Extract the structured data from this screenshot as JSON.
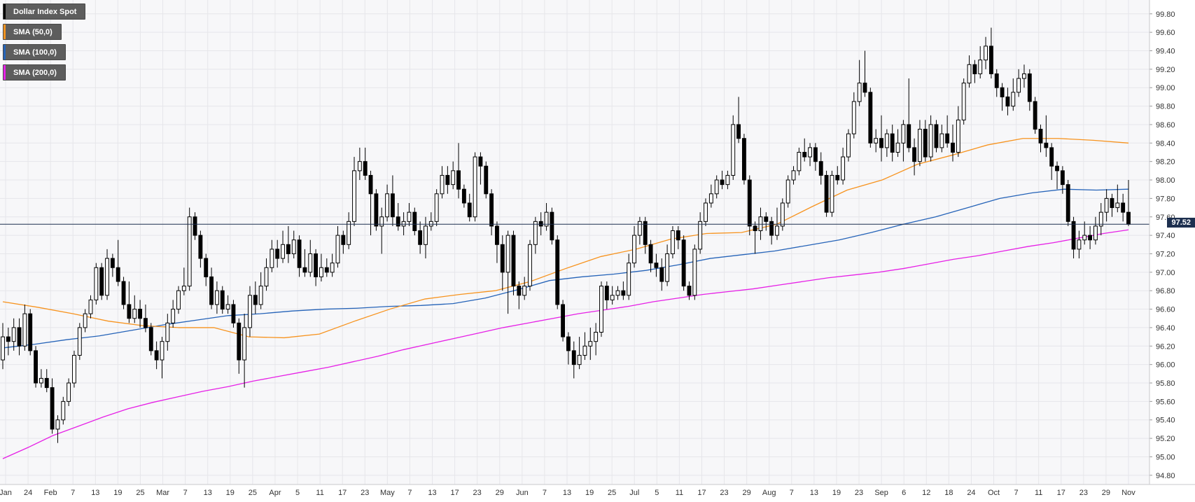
{
  "chart_data": {
    "type": "candlestick",
    "ylim": [
      94.7,
      99.95
    ],
    "y_ticks": [
      "94.80",
      "95.00",
      "95.20",
      "95.40",
      "95.60",
      "95.80",
      "96.00",
      "96.20",
      "96.40",
      "96.60",
      "96.80",
      "97.00",
      "97.20",
      "97.40",
      "97.60",
      "97.80",
      "98.00",
      "98.20",
      "98.40",
      "98.60",
      "98.80",
      "99.00",
      "99.20",
      "99.40",
      "99.60",
      "99.80"
    ],
    "x_ticks": [
      "Jan",
      "24",
      "Feb",
      "7",
      "13",
      "19",
      "25",
      "Mar",
      "7",
      "13",
      "19",
      "25",
      "Apr",
      "5",
      "11",
      "17",
      "23",
      "May",
      "7",
      "13",
      "17",
      "23",
      "29",
      "Jun",
      "7",
      "13",
      "19",
      "25",
      "Jul",
      "5",
      "11",
      "17",
      "23",
      "29",
      "Aug",
      "7",
      "13",
      "19",
      "23",
      "Sep",
      "6",
      "12",
      "18",
      "24",
      "Oct",
      "7",
      "11",
      "17",
      "23",
      "29",
      "Nov"
    ],
    "last_price": 97.52,
    "last_price_label": "97.52",
    "colors": {
      "up_fill": "#ffffff",
      "down_fill": "#000000",
      "candle_outline": "#000000",
      "sma50": "#f7931e",
      "sma100": "#2563b8",
      "sma200": "#e620e6",
      "grid": "#e6e6ea",
      "plot_bg": "#f7f7f9",
      "price_line": "#1d2f4f"
    },
    "legend": [
      {
        "label": "Dollar Index Spot",
        "color": "#000000"
      },
      {
        "label": "SMA (50,0)",
        "color": "#f7931e"
      },
      {
        "label": "SMA (100,0)",
        "color": "#2563b8"
      },
      {
        "label": "SMA (200,0)",
        "color": "#e620e6"
      }
    ],
    "candles": [
      [
        96.05,
        96.3,
        96.45,
        95.95
      ],
      [
        96.3,
        96.25,
        96.4,
        96.1
      ],
      [
        96.25,
        96.4,
        96.5,
        96.15
      ],
      [
        96.4,
        96.2,
        96.5,
        96.1
      ],
      [
        96.2,
        96.55,
        96.65,
        96.15
      ],
      [
        96.55,
        96.15,
        96.6,
        96.1
      ],
      [
        96.15,
        95.8,
        96.2,
        95.75
      ],
      [
        95.8,
        95.85,
        95.95,
        95.75
      ],
      [
        95.85,
        95.75,
        95.95,
        95.7
      ],
      [
        95.75,
        95.3,
        95.85,
        95.25
      ],
      [
        95.3,
        95.4,
        95.45,
        95.15
      ],
      [
        95.4,
        95.6,
        95.65,
        95.35
      ],
      [
        95.6,
        95.8,
        95.85,
        95.55
      ],
      [
        95.8,
        96.1,
        96.15,
        95.75
      ],
      [
        96.1,
        96.4,
        96.45,
        96.05
      ],
      [
        96.4,
        96.55,
        96.6,
        96.35
      ],
      [
        96.55,
        96.7,
        96.75,
        96.5
      ],
      [
        96.7,
        97.05,
        97.1,
        96.65
      ],
      [
        97.05,
        96.75,
        97.1,
        96.7
      ],
      [
        96.75,
        97.15,
        97.25,
        96.7
      ],
      [
        97.15,
        97.05,
        97.2,
        96.95
      ],
      [
        97.05,
        96.9,
        97.35,
        96.85
      ],
      [
        96.9,
        96.65,
        96.95,
        96.6
      ],
      [
        96.65,
        96.5,
        96.9,
        96.45
      ],
      [
        96.5,
        96.6,
        96.75,
        96.45
      ],
      [
        96.6,
        96.5,
        96.7,
        96.4
      ],
      [
        96.5,
        96.4,
        96.65,
        96.35
      ],
      [
        96.4,
        96.15,
        96.45,
        96.1
      ],
      [
        96.15,
        96.05,
        96.25,
        95.95
      ],
      [
        96.05,
        96.25,
        96.3,
        95.85
      ],
      [
        96.25,
        96.45,
        96.55,
        96.15
      ],
      [
        96.45,
        96.6,
        96.7,
        96.4
      ],
      [
        96.6,
        96.8,
        96.85,
        96.55
      ],
      [
        96.8,
        96.85,
        97.05,
        96.75
      ],
      [
        96.85,
        97.6,
        97.7,
        96.8
      ],
      [
        97.6,
        97.4,
        97.65,
        97.35
      ],
      [
        97.4,
        97.15,
        97.45,
        97.05
      ],
      [
        97.15,
        96.95,
        97.2,
        96.85
      ],
      [
        96.95,
        96.65,
        97.05,
        96.6
      ],
      [
        96.65,
        96.8,
        96.9,
        96.55
      ],
      [
        96.8,
        96.6,
        96.85,
        96.55
      ],
      [
        96.6,
        96.65,
        96.75,
        96.55
      ],
      [
        96.65,
        96.45,
        96.7,
        96.4
      ],
      [
        96.45,
        96.05,
        96.5,
        95.9
      ],
      [
        96.05,
        96.4,
        96.55,
        95.75
      ],
      [
        96.4,
        96.75,
        96.85,
        96.3
      ],
      [
        96.75,
        96.65,
        96.9,
        96.55
      ],
      [
        96.65,
        96.85,
        97.0,
        96.6
      ],
      [
        96.85,
        97.05,
        97.15,
        96.8
      ],
      [
        97.05,
        97.25,
        97.35,
        97.0
      ],
      [
        97.25,
        97.15,
        97.35,
        97.05
      ],
      [
        97.15,
        97.3,
        97.45,
        97.1
      ],
      [
        97.3,
        97.2,
        97.5,
        97.1
      ],
      [
        97.2,
        97.35,
        97.45,
        97.15
      ],
      [
        97.35,
        97.05,
        97.4,
        96.95
      ],
      [
        97.05,
        97.0,
        97.25,
        96.95
      ],
      [
        97.0,
        97.2,
        97.35,
        96.95
      ],
      [
        97.2,
        96.95,
        97.25,
        96.85
      ],
      [
        96.95,
        97.05,
        97.2,
        96.9
      ],
      [
        97.05,
        97.0,
        97.15,
        96.95
      ],
      [
        97.0,
        97.1,
        97.2,
        96.95
      ],
      [
        97.1,
        97.4,
        97.5,
        97.05
      ],
      [
        97.4,
        97.3,
        97.45,
        97.2
      ],
      [
        97.3,
        97.55,
        97.65,
        97.25
      ],
      [
        97.55,
        98.1,
        98.25,
        97.5
      ],
      [
        98.1,
        98.2,
        98.35,
        98.0
      ],
      [
        98.2,
        98.05,
        98.35,
        98.0
      ],
      [
        98.05,
        97.85,
        98.1,
        97.4
      ],
      [
        97.85,
        97.5,
        97.9,
        97.45
      ],
      [
        97.5,
        97.6,
        97.7,
        97.2
      ],
      [
        97.6,
        97.85,
        97.95,
        97.55
      ],
      [
        97.85,
        97.6,
        98.05,
        97.5
      ],
      [
        97.6,
        97.5,
        97.75,
        97.45
      ],
      [
        97.5,
        97.55,
        97.65,
        97.4
      ],
      [
        97.55,
        97.65,
        97.75,
        97.5
      ],
      [
        97.65,
        97.45,
        97.7,
        97.4
      ],
      [
        97.45,
        97.3,
        97.55,
        97.2
      ],
      [
        97.3,
        97.5,
        97.6,
        97.15
      ],
      [
        97.5,
        97.55,
        97.65,
        97.45
      ],
      [
        97.55,
        97.85,
        97.9,
        97.5
      ],
      [
        97.85,
        98.05,
        98.15,
        97.8
      ],
      [
        98.05,
        97.95,
        98.15,
        97.85
      ],
      [
        97.95,
        98.1,
        98.2,
        97.9
      ],
      [
        98.1,
        97.9,
        98.4,
        97.8
      ],
      [
        97.9,
        97.75,
        97.95,
        97.7
      ],
      [
        97.75,
        97.6,
        97.85,
        97.55
      ],
      [
        97.6,
        98.25,
        98.3,
        97.55
      ],
      [
        98.25,
        98.15,
        98.3,
        97.95
      ],
      [
        98.15,
        97.85,
        98.2,
        97.8
      ],
      [
        97.85,
        97.5,
        97.9,
        97.4
      ],
      [
        97.5,
        97.3,
        97.55,
        97.1
      ],
      [
        97.3,
        97.0,
        97.4,
        96.8
      ],
      [
        97.0,
        97.4,
        97.45,
        96.55
      ],
      [
        97.4,
        96.85,
        97.45,
        96.75
      ],
      [
        96.85,
        96.75,
        96.9,
        96.6
      ],
      [
        96.75,
        96.85,
        96.95,
        96.7
      ],
      [
        96.85,
        97.3,
        97.35,
        96.8
      ],
      [
        97.3,
        97.55,
        97.6,
        97.2
      ],
      [
        97.55,
        97.5,
        97.65,
        97.4
      ],
      [
        97.5,
        97.65,
        97.75,
        97.45
      ],
      [
        97.65,
        97.35,
        97.7,
        97.3
      ],
      [
        97.35,
        96.65,
        97.4,
        96.6
      ],
      [
        96.65,
        96.3,
        96.7,
        96.25
      ],
      [
        96.3,
        96.15,
        96.35,
        96.0
      ],
      [
        96.15,
        96.0,
        96.25,
        95.85
      ],
      [
        96.0,
        96.1,
        96.3,
        95.95
      ],
      [
        96.1,
        96.2,
        96.35,
        96.05
      ],
      [
        96.2,
        96.25,
        96.4,
        96.05
      ],
      [
        96.25,
        96.35,
        96.45,
        96.1
      ],
      [
        96.35,
        96.85,
        96.9,
        96.3
      ],
      [
        96.85,
        96.7,
        96.9,
        96.6
      ],
      [
        96.7,
        96.75,
        96.85,
        96.65
      ],
      [
        96.75,
        96.8,
        96.85,
        96.7
      ],
      [
        96.8,
        96.75,
        96.9,
        96.7
      ],
      [
        96.75,
        97.1,
        97.2,
        96.7
      ],
      [
        97.1,
        97.4,
        97.5,
        97.05
      ],
      [
        97.4,
        97.55,
        97.6,
        97.3
      ],
      [
        97.55,
        97.3,
        97.6,
        97.2
      ],
      [
        97.3,
        97.1,
        97.35,
        97.0
      ],
      [
        97.1,
        97.05,
        97.2,
        96.95
      ],
      [
        97.05,
        96.9,
        97.15,
        96.8
      ],
      [
        96.9,
        97.2,
        97.3,
        96.85
      ],
      [
        97.2,
        97.45,
        97.5,
        97.15
      ],
      [
        97.45,
        97.35,
        97.5,
        97.25
      ],
      [
        97.35,
        96.85,
        97.4,
        96.8
      ],
      [
        96.85,
        96.75,
        96.9,
        96.7
      ],
      [
        96.75,
        97.25,
        97.3,
        96.7
      ],
      [
        97.25,
        97.55,
        97.65,
        97.2
      ],
      [
        97.55,
        97.75,
        97.8,
        97.5
      ],
      [
        97.75,
        97.85,
        97.95,
        97.7
      ],
      [
        97.85,
        98.0,
        98.05,
        97.8
      ],
      [
        98.0,
        97.95,
        98.1,
        97.9
      ],
      [
        97.95,
        98.05,
        98.1,
        97.9
      ],
      [
        98.05,
        98.6,
        98.7,
        98.0
      ],
      [
        98.6,
        98.45,
        98.9,
        98.4
      ],
      [
        98.45,
        98.0,
        98.5,
        97.95
      ],
      [
        98.0,
        97.5,
        98.05,
        97.4
      ],
      [
        97.5,
        97.45,
        97.55,
        97.2
      ],
      [
        97.45,
        97.6,
        97.7,
        97.35
      ],
      [
        97.6,
        97.55,
        97.65,
        97.45
      ],
      [
        97.55,
        97.4,
        97.6,
        97.3
      ],
      [
        97.4,
        97.5,
        97.7,
        97.35
      ],
      [
        97.5,
        97.75,
        97.8,
        97.45
      ],
      [
        97.75,
        98.0,
        98.05,
        97.7
      ],
      [
        98.0,
        98.1,
        98.15,
        97.95
      ],
      [
        98.1,
        98.3,
        98.35,
        98.05
      ],
      [
        98.3,
        98.25,
        98.45,
        98.2
      ],
      [
        98.25,
        98.35,
        98.4,
        98.15
      ],
      [
        98.35,
        98.2,
        98.4,
        98.1
      ],
      [
        98.2,
        98.05,
        98.3,
        97.95
      ],
      [
        98.05,
        97.65,
        98.1,
        97.6
      ],
      [
        97.65,
        98.05,
        98.1,
        97.6
      ],
      [
        98.05,
        98.0,
        98.15,
        97.95
      ],
      [
        98.0,
        98.25,
        98.35,
        97.95
      ],
      [
        98.25,
        98.5,
        98.55,
        98.2
      ],
      [
        98.5,
        98.85,
        98.95,
        98.45
      ],
      [
        98.85,
        99.05,
        99.3,
        98.8
      ],
      [
        99.05,
        98.95,
        99.4,
        98.9
      ],
      [
        98.95,
        98.4,
        99.0,
        98.35
      ],
      [
        98.4,
        98.45,
        98.55,
        98.3
      ],
      [
        98.45,
        98.35,
        98.7,
        98.2
      ],
      [
        98.35,
        98.5,
        98.55,
        98.25
      ],
      [
        98.5,
        98.3,
        98.6,
        98.2
      ],
      [
        98.3,
        98.4,
        98.55,
        98.25
      ],
      [
        98.4,
        98.6,
        98.65,
        98.2
      ],
      [
        98.6,
        98.35,
        99.1,
        98.3
      ],
      [
        98.35,
        98.2,
        98.45,
        98.05
      ],
      [
        98.2,
        98.55,
        98.65,
        98.15
      ],
      [
        98.55,
        98.25,
        98.65,
        98.2
      ],
      [
        98.25,
        98.6,
        98.7,
        98.2
      ],
      [
        98.6,
        98.35,
        98.65,
        98.3
      ],
      [
        98.35,
        98.5,
        98.6,
        98.3
      ],
      [
        98.5,
        98.4,
        98.7,
        98.35
      ],
      [
        98.4,
        98.3,
        98.6,
        98.2
      ],
      [
        98.3,
        98.65,
        98.8,
        98.25
      ],
      [
        98.65,
        99.05,
        99.1,
        98.6
      ],
      [
        99.05,
        99.25,
        99.35,
        99.0
      ],
      [
        99.25,
        99.15,
        99.3,
        99.05
      ],
      [
        99.15,
        99.3,
        99.45,
        99.1
      ],
      [
        99.3,
        99.45,
        99.55,
        99.2
      ],
      [
        99.45,
        99.15,
        99.65,
        99.1
      ],
      [
        99.15,
        99.0,
        99.2,
        98.9
      ],
      [
        99.0,
        98.9,
        99.05,
        98.75
      ],
      [
        98.9,
        98.8,
        99.0,
        98.7
      ],
      [
        98.8,
        98.95,
        99.1,
        98.75
      ],
      [
        98.95,
        99.1,
        99.2,
        98.9
      ],
      [
        99.1,
        99.15,
        99.25,
        99.0
      ],
      [
        99.15,
        98.85,
        99.2,
        98.75
      ],
      [
        98.85,
        98.55,
        98.9,
        98.5
      ],
      [
        98.55,
        98.4,
        98.6,
        98.3
      ],
      [
        98.4,
        98.35,
        98.7,
        98.25
      ],
      [
        98.35,
        98.15,
        98.4,
        98.0
      ],
      [
        98.15,
        98.1,
        98.2,
        97.9
      ],
      [
        98.1,
        97.95,
        98.15,
        97.85
      ],
      [
        97.95,
        97.55,
        98.0,
        97.5
      ],
      [
        97.55,
        97.25,
        97.6,
        97.15
      ],
      [
        97.25,
        97.35,
        97.45,
        97.15
      ],
      [
        97.35,
        97.4,
        97.55,
        97.3
      ],
      [
        97.4,
        97.35,
        97.5,
        97.25
      ],
      [
        97.35,
        97.5,
        97.6,
        97.3
      ],
      [
        97.5,
        97.65,
        97.75,
        97.4
      ],
      [
        97.65,
        97.8,
        97.9,
        97.55
      ],
      [
        97.8,
        97.7,
        97.85,
        97.6
      ],
      [
        97.7,
        97.75,
        97.95,
        97.65
      ],
      [
        97.75,
        97.65,
        97.85,
        97.55
      ],
      [
        97.65,
        97.52,
        98.0,
        97.5
      ]
    ],
    "sma50": [
      96.68,
      96.62,
      96.55,
      96.47,
      96.42,
      96.4,
      96.4,
      96.3,
      96.29,
      96.33,
      96.47,
      96.6,
      96.71,
      96.76,
      96.8,
      96.9,
      97.04,
      97.17,
      97.25,
      97.36,
      97.42,
      97.43,
      97.52,
      97.71,
      97.89,
      98.0,
      98.17,
      98.27,
      98.38,
      98.45,
      98.45,
      98.43,
      98.4
    ],
    "sma100": [
      96.18,
      96.22,
      96.27,
      96.31,
      96.37,
      96.43,
      96.48,
      96.53,
      96.55,
      96.58,
      96.6,
      96.61,
      96.63,
      96.64,
      96.66,
      96.72,
      96.81,
      96.91,
      96.95,
      96.98,
      97.02,
      97.08,
      97.15,
      97.19,
      97.23,
      97.29,
      97.35,
      97.43,
      97.52,
      97.6,
      97.7,
      97.8,
      97.86,
      97.9,
      97.89,
      97.9
    ],
    "sma200": [
      94.98,
      95.1,
      95.23,
      95.33,
      95.43,
      95.52,
      95.59,
      95.65,
      95.71,
      95.76,
      95.82,
      95.87,
      95.92,
      95.97,
      96.03,
      96.09,
      96.16,
      96.22,
      96.28,
      96.34,
      96.4,
      96.45,
      96.5,
      96.55,
      96.59,
      96.63,
      96.68,
      96.72,
      96.76,
      96.79,
      96.82,
      96.86,
      96.9,
      96.94,
      96.97,
      97.0,
      97.04,
      97.09,
      97.14,
      97.18,
      97.23,
      97.28,
      97.32,
      97.37,
      97.42,
      97.46
    ]
  }
}
